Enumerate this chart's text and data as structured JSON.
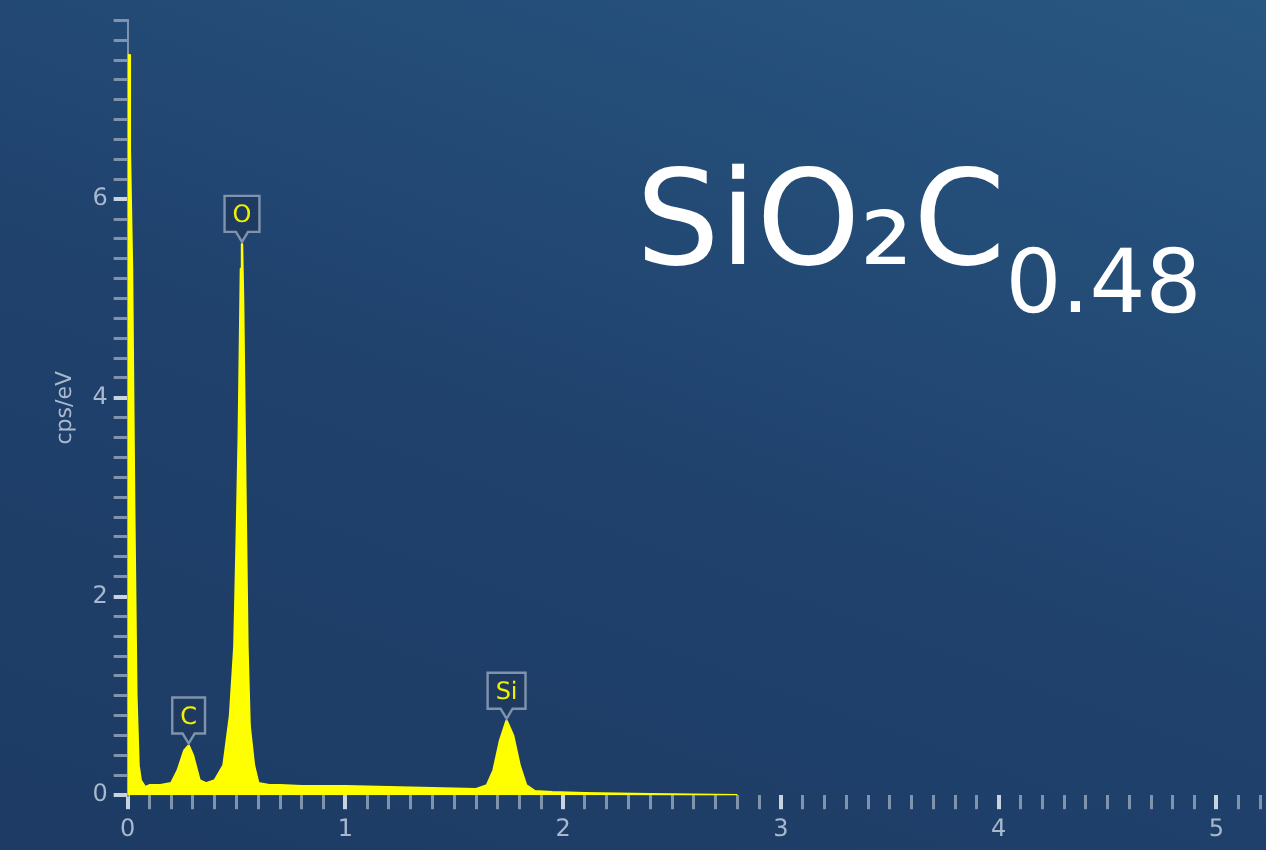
{
  "chart_data": {
    "type": "area",
    "title": "SiO₂C$_{0.48}$",
    "ylabel": "cps/eV",
    "marker": "none",
    "grid": false,
    "legend": false,
    "x": [
      0,
      0.005,
      0.01,
      0.02,
      0.03,
      0.04,
      0.05,
      0.06,
      0.08,
      0.1,
      0.15,
      0.2,
      0.23,
      0.26,
      0.28,
      0.3,
      0.33,
      0.36,
      0.4,
      0.44,
      0.47,
      0.49,
      0.5,
      0.51,
      0.52,
      0.525,
      0.53,
      0.54,
      0.55,
      0.56,
      0.58,
      0.6,
      0.65,
      0.7,
      0.8,
      1.0,
      1.2,
      1.4,
      1.6,
      1.65,
      1.68,
      1.71,
      1.74,
      1.77,
      1.8,
      1.83,
      1.87,
      1.95,
      2.1,
      2.4,
      2.8
    ],
    "series": [
      {
        "color": "#ffff00",
        "values": [
          0,
          7.45,
          6.5,
          5.3,
          2.9,
          1.0,
          0.3,
          0.15,
          0.08,
          0.1,
          0.1,
          0.12,
          0.25,
          0.45,
          0.5,
          0.4,
          0.15,
          0.12,
          0.15,
          0.3,
          0.8,
          1.5,
          2.5,
          3.6,
          5.3,
          5.55,
          5.0,
          3.2,
          1.5,
          0.7,
          0.3,
          0.12,
          0.1,
          0.1,
          0.09,
          0.09,
          0.08,
          0.07,
          0.06,
          0.1,
          0.25,
          0.55,
          0.75,
          0.6,
          0.3,
          0.1,
          0.04,
          0.03,
          0.02,
          0.01,
          0
        ]
      }
    ],
    "annotations": [
      {
        "text": "C",
        "x": 0.28,
        "y": 0.5
      },
      {
        "text": "O",
        "x": 0.525,
        "y": 5.55
      },
      {
        "text": "Si",
        "x": 1.74,
        "y": 0.75
      }
    ],
    "xlim": [
      0,
      5.2
    ],
    "ylim": [
      0,
      7.8
    ],
    "xticks": [
      0,
      {
        "value": 0.1,
        "label": null
      },
      {
        "value": 0.2,
        "label": null
      },
      {
        "value": 0.3,
        "label": null
      },
      {
        "value": 0.4,
        "label": null
      },
      {
        "value": 0.5,
        "label": null
      },
      {
        "value": 0.6,
        "label": null
      },
      {
        "value": 0.7,
        "label": null
      },
      {
        "value": 0.8,
        "label": null
      },
      {
        "value": 0.9,
        "label": null
      },
      1,
      {
        "value": 1.1,
        "label": null
      },
      {
        "value": 1.2,
        "label": null
      },
      {
        "value": 1.3,
        "label": null
      },
      {
        "value": 1.4,
        "label": null
      },
      {
        "value": 1.5,
        "label": null
      },
      {
        "value": 1.6,
        "label": null
      },
      {
        "value": 1.7,
        "label": null
      },
      {
        "value": 1.8,
        "label": null
      },
      {
        "value": 1.9,
        "label": null
      },
      2,
      {
        "value": 2.1,
        "label": null
      },
      {
        "value": 2.2,
        "label": null
      },
      {
        "value": 2.3,
        "label": null
      },
      {
        "value": 2.4,
        "label": null
      },
      {
        "value": 2.5,
        "label": null
      },
      {
        "value": 2.6,
        "label": null
      },
      {
        "value": 2.7,
        "label": null
      },
      {
        "value": 2.8,
        "label": null
      },
      {
        "value": 2.9,
        "label": null
      },
      3,
      {
        "value": 3.1,
        "label": null
      },
      {
        "value": 3.2,
        "label": null
      },
      {
        "value": 3.3,
        "label": null
      },
      {
        "value": 3.4,
        "label": null
      },
      {
        "value": 3.5,
        "label": null
      },
      {
        "value": 3.6,
        "label": null
      },
      {
        "value": 3.7,
        "label": null
      },
      {
        "value": 3.8,
        "label": null
      },
      {
        "value": 3.9,
        "label": null
      },
      4,
      {
        "value": 4.1,
        "label": null
      },
      {
        "value": 4.2,
        "label": null
      },
      {
        "value": 4.3,
        "label": null
      },
      {
        "value": 4.4,
        "label": null
      },
      {
        "value": 4.5,
        "label": null
      },
      {
        "value": 4.6,
        "label": null
      },
      {
        "value": 4.7,
        "label": null
      },
      {
        "value": 4.8,
        "label": null
      },
      {
        "value": 4.9,
        "label": null
      },
      5,
      {
        "value": 5.1,
        "label": null
      },
      {
        "value": 5.2,
        "label": null
      }
    ],
    "yticks": [
      0,
      {
        "value": 0.2,
        "label": null
      },
      {
        "value": 0.4,
        "label": null
      },
      {
        "value": 0.6,
        "label": null
      },
      {
        "value": 0.8,
        "label": null
      },
      {
        "value": 1,
        "label": null
      },
      {
        "value": 1.2,
        "label": null
      },
      {
        "value": 1.4,
        "label": null
      },
      {
        "value": 1.6,
        "label": null
      },
      {
        "value": 1.8,
        "label": null
      },
      2,
      {
        "value": 2.2,
        "label": null
      },
      {
        "value": 2.4,
        "label": null
      },
      {
        "value": 2.6,
        "label": null
      },
      {
        "value": 2.8,
        "label": null
      },
      {
        "value": 3,
        "label": null
      },
      {
        "value": 3.2,
        "label": null
      },
      {
        "value": 3.4,
        "label": null
      },
      {
        "value": 3.6,
        "label": null
      },
      {
        "value": 3.8,
        "label": null
      },
      4,
      {
        "value": 4.2,
        "label": null
      },
      {
        "value": 4.4,
        "label": null
      },
      {
        "value": 4.6,
        "label": null
      },
      {
        "value": 4.8,
        "label": null
      },
      {
        "value": 5,
        "label": null
      },
      {
        "value": 5.2,
        "label": null
      },
      {
        "value": 5.4,
        "label": null
      },
      {
        "value": 5.6,
        "label": null
      },
      {
        "value": 5.8,
        "label": null
      },
      6,
      {
        "value": 6.2,
        "label": null
      },
      {
        "value": 6.4,
        "label": null
      },
      {
        "value": 6.6,
        "label": null
      },
      {
        "value": 6.8,
        "label": null
      },
      {
        "value": 7,
        "label": null
      },
      {
        "value": 7.2,
        "label": null
      },
      {
        "value": 7.4,
        "label": null
      },
      {
        "value": 7.6,
        "label": null
      },
      {
        "value": 7.8,
        "label": null
      }
    ]
  }
}
